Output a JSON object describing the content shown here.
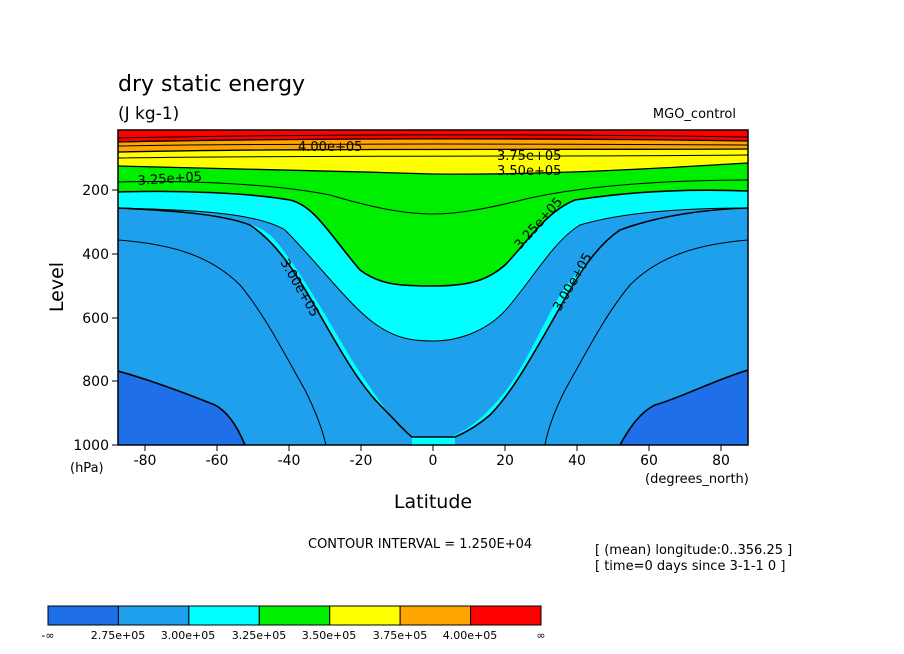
{
  "chart_data": {
    "type": "contour",
    "title": "dry static energy",
    "units": "(J kg-1)",
    "run_label": "MGO_control",
    "xlabel": "Latitude",
    "ylabel": "Level",
    "x_unit": "(degrees_north)",
    "y_unit": "(hPa)",
    "xlim": [
      -87.5,
      87.5
    ],
    "ylim": [
      1000,
      20
    ],
    "y_scale": "linear",
    "y_inverted": true,
    "x_ticks": [
      "-80",
      "-60",
      "-40",
      "-20",
      "0",
      "20",
      "40",
      "60",
      "80"
    ],
    "y_ticks": [
      "200",
      "400",
      "600",
      "800",
      "1000"
    ],
    "contour_interval_text": "CONTOUR INTERVAL = 1.250E+04",
    "info_lines": [
      "[ (mean) longitude:0..356.25 ]",
      "[ time=0 days since 3-1-1 0 ]"
    ],
    "contour_labels": [
      "4.00e+05",
      "3.75e+05",
      "3.50e+05",
      "3.25e+05",
      "3.25e+05",
      "3.00e+05",
      "3.00e+05"
    ],
    "colorbar": {
      "edge_labels": [
        "-∞",
        "∞"
      ],
      "labels": [
        "2.75e+05",
        "3.00e+05",
        "3.25e+05",
        "3.50e+05",
        "3.75e+05",
        "4.00e+05"
      ],
      "colors": [
        "#1f6fe8",
        "#1ea0ec",
        "#00ffff",
        "#00ee00",
        "#ffff00",
        "#ffa500",
        "#ff0000"
      ]
    },
    "contour_levels": [
      275000,
      287500,
      300000,
      312500,
      325000,
      337500,
      350000,
      362500,
      375000,
      387500,
      400000
    ],
    "bands": [
      {
        "range": "< 2.75e+05",
        "color": "#1f6fe8"
      },
      {
        "range": "2.75e+05 – 3.00e+05",
        "color": "#1ea0ec"
      },
      {
        "range": "3.00e+05 – 3.25e+05",
        "color": "#00ffff"
      },
      {
        "range": "3.25e+05 – 3.50e+05",
        "color": "#00ee00"
      },
      {
        "range": "3.50e+05 – 3.75e+05",
        "color": "#ffff00"
      },
      {
        "range": "3.75e+05 – 4.00e+05",
        "color": "#ffa500"
      },
      {
        "range": "> 4.00e+05",
        "color": "#ff0000"
      }
    ]
  }
}
